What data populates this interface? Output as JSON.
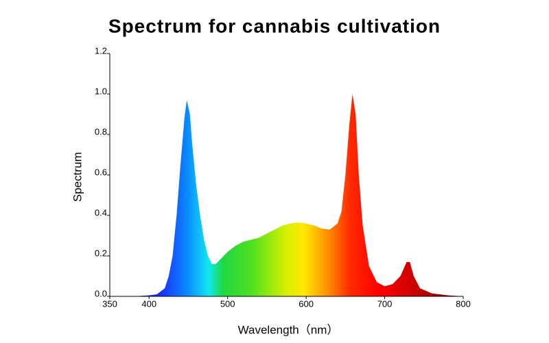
{
  "chart_data": {
    "type": "area",
    "title": "Spectrum for cannabis cultivation",
    "xlabel": "Wavelength（nm）",
    "ylabel": "Spectrum",
    "x": [
      380,
      400,
      410,
      420,
      425,
      430,
      435,
      440,
      445,
      448,
      452,
      455,
      460,
      465,
      470,
      475,
      480,
      485,
      490,
      500,
      510,
      520,
      530,
      540,
      550,
      560,
      570,
      580,
      590,
      600,
      610,
      620,
      630,
      640,
      645,
      650,
      655,
      659,
      663,
      667,
      672,
      680,
      690,
      700,
      710,
      720,
      728,
      732,
      737,
      745,
      760,
      780,
      800
    ],
    "values": [
      0,
      0.005,
      0.01,
      0.04,
      0.1,
      0.2,
      0.4,
      0.65,
      0.88,
      0.97,
      0.9,
      0.75,
      0.55,
      0.4,
      0.28,
      0.2,
      0.16,
      0.16,
      0.18,
      0.22,
      0.25,
      0.27,
      0.28,
      0.29,
      0.31,
      0.33,
      0.35,
      0.36,
      0.365,
      0.36,
      0.35,
      0.335,
      0.33,
      0.36,
      0.42,
      0.6,
      0.85,
      1.0,
      0.9,
      0.6,
      0.35,
      0.15,
      0.07,
      0.05,
      0.06,
      0.1,
      0.17,
      0.17,
      0.1,
      0.04,
      0.015,
      0.005,
      0
    ],
    "xlim": [
      350,
      800
    ],
    "xticks": [
      350,
      400,
      500,
      600,
      700,
      800
    ],
    "ylim": [
      0,
      1.2
    ],
    "yticks": [
      {
        "value": 0,
        "label": "0.0"
      },
      0.2,
      0.4,
      0.6,
      0.8,
      {
        "value": 1,
        "label": "1.0"
      },
      1.2
    ],
    "grid": false
  }
}
